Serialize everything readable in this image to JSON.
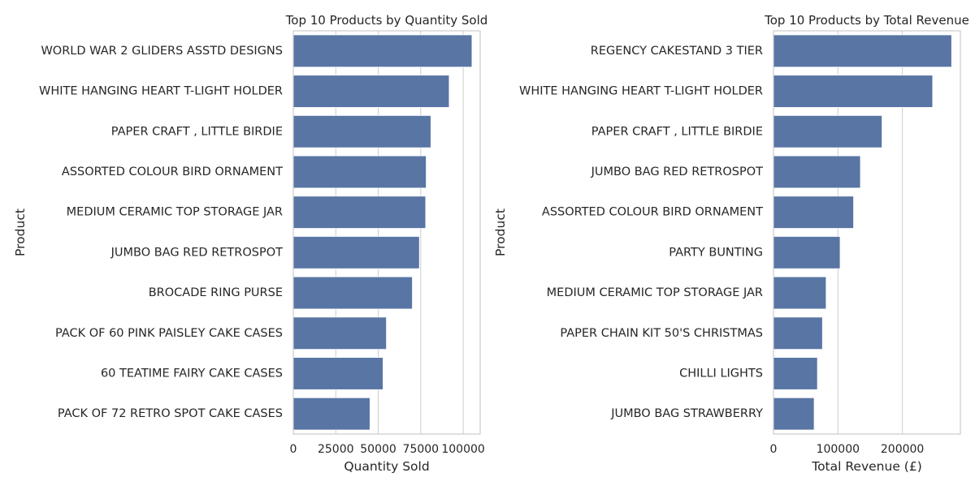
{
  "chart_data": [
    {
      "type": "bar",
      "orientation": "horizontal",
      "title": "Top 10 Products by Quantity Sold",
      "xlabel": "Quantity Sold",
      "ylabel": "Product",
      "categories": [
        "WORLD WAR 2 GLIDERS ASSTD DESIGNS",
        "WHITE HANGING HEART T-LIGHT HOLDER",
        "PAPER CRAFT , LITTLE BIRDIE",
        "ASSORTED COLOUR BIRD ORNAMENT",
        "MEDIUM CERAMIC TOP STORAGE JAR",
        "JUMBO BAG RED RETROSPOT",
        "BROCADE RING PURSE ",
        "PACK OF 60 PINK PAISLEY CAKE CASES",
        "60 TEATIME FAIRY CAKE CASES",
        "PACK OF 72 RETRO SPOT CAKE CASES"
      ],
      "values": [
        105185,
        91757,
        80995,
        78234,
        77916,
        74224,
        70082,
        54819,
        52818,
        45129
      ],
      "xlim": [
        0,
        110000
      ],
      "xticks": [
        0,
        25000,
        50000,
        75000,
        100000
      ],
      "xtick_labels": [
        "0",
        "25000",
        "50000",
        "75000",
        "100000"
      ],
      "grid": true,
      "bar_color": "#5875a4"
    },
    {
      "type": "bar",
      "orientation": "horizontal",
      "title": "Top 10 Products by Total Revenue",
      "xlabel": "Total Revenue (£)",
      "ylabel": "Product",
      "categories": [
        "REGENCY CAKESTAND 3 TIER",
        "WHITE HANGING HEART T-LIGHT HOLDER",
        "PAPER CRAFT , LITTLE BIRDIE",
        "JUMBO BAG RED RETROSPOT",
        "ASSORTED COLOUR BIRD ORNAMENT",
        "PARTY BUNTING",
        "MEDIUM CERAMIC TOP STORAGE JAR",
        "PAPER CHAIN KIT 50'S CHRISTMAS ",
        "CHILLI LIGHTS",
        "JUMBO BAG STRAWBERRY"
      ],
      "values": [
        276500,
        247000,
        168470,
        134900,
        124300,
        103400,
        81700,
        76000,
        68200,
        63100
      ],
      "xlim": [
        0,
        290000
      ],
      "xticks": [
        0,
        100000,
        200000
      ],
      "xtick_labels": [
        "0",
        "100000",
        "200000"
      ],
      "grid": true,
      "bar_color": "#5875a4"
    }
  ]
}
